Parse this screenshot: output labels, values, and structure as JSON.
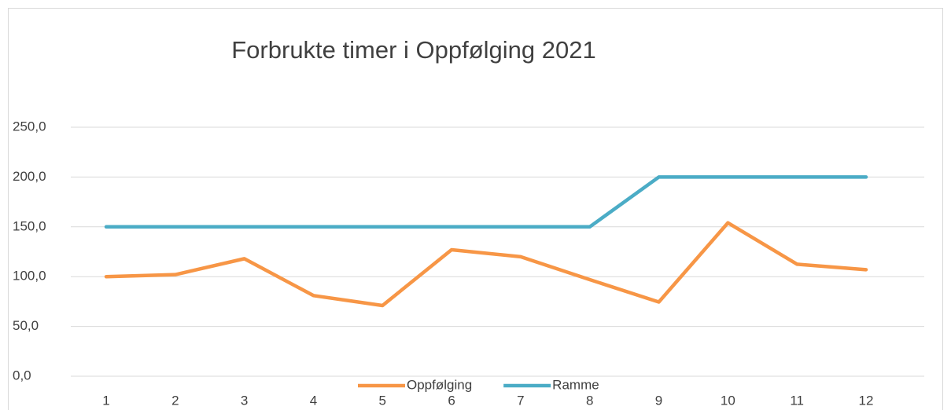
{
  "chart_data": {
    "type": "line",
    "title": "Forbrukte timer i Oppfølging 2021",
    "categories": [
      "1",
      "2",
      "3",
      "4",
      "5",
      "6",
      "7",
      "8",
      "9",
      "10",
      "11",
      "12"
    ],
    "series": [
      {
        "name": "Oppfølging",
        "color": "#f79646",
        "values": [
          100,
          102,
          118,
          81,
          71,
          127,
          120,
          97,
          74.5,
          154,
          112.5,
          107
        ]
      },
      {
        "name": "Ramme",
        "color": "#4bacc6",
        "values": [
          150,
          150,
          150,
          150,
          150,
          150,
          150,
          150,
          200,
          200,
          200,
          200
        ]
      }
    ],
    "ylim": [
      0,
      250
    ],
    "yticks": [
      {
        "value": 0,
        "label": "0,0"
      },
      {
        "value": 50,
        "label": "50,0"
      },
      {
        "value": 100,
        "label": "100,0"
      },
      {
        "value": 150,
        "label": "150,0"
      },
      {
        "value": 200,
        "label": "200,0"
      },
      {
        "value": 250,
        "label": "250,0"
      }
    ],
    "grid": true,
    "legend": "bottom"
  }
}
